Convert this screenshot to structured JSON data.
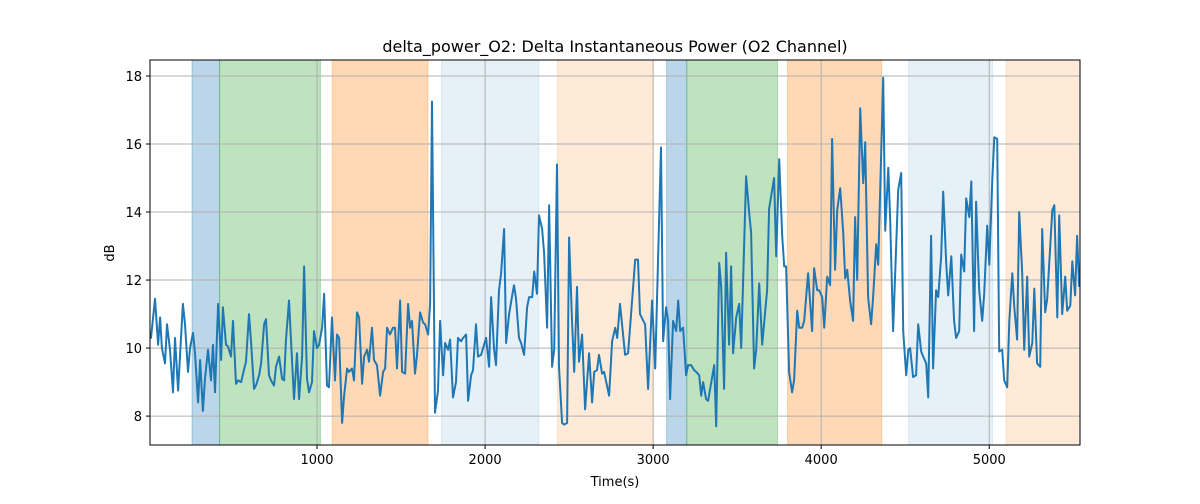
{
  "chart_data": {
    "type": "line",
    "title": "delta_power_O2: Delta Instantaneous Power (O2 Channel)",
    "xlabel": "Time(s)",
    "ylabel": "dB",
    "xlim": [
      6,
      5540
    ],
    "ylim": [
      7.15,
      18.47
    ],
    "xticks": [
      1000,
      2000,
      3000,
      4000,
      5000
    ],
    "xtick_labels": [
      "1000",
      "2000",
      "3000",
      "4000",
      "5000"
    ],
    "yticks": [
      8,
      10,
      12,
      14,
      16,
      18
    ],
    "ytick_labels": [
      "8",
      "10",
      "12",
      "14",
      "16",
      "18"
    ],
    "grid": true,
    "line_color": "#1f77b4",
    "spans": [
      {
        "start": 256,
        "end": 420,
        "color": "#1f77b4",
        "alpha": 0.3
      },
      {
        "start": 420,
        "end": 1020,
        "color": "#2ca02c",
        "alpha": 0.3
      },
      {
        "start": 1090,
        "end": 1660,
        "color": "#ff7f0e",
        "alpha": 0.3
      },
      {
        "start": 1740,
        "end": 2320,
        "color": "#1f77b4",
        "alpha": 0.11
      },
      {
        "start": 2430,
        "end": 3000,
        "color": "#ff7f0e",
        "alpha": 0.16
      },
      {
        "start": 3080,
        "end": 3200,
        "color": "#1f77b4",
        "alpha": 0.3
      },
      {
        "start": 3200,
        "end": 3740,
        "color": "#2ca02c",
        "alpha": 0.3
      },
      {
        "start": 3800,
        "end": 4360,
        "color": "#ff7f0e",
        "alpha": 0.3
      },
      {
        "start": 4520,
        "end": 5020,
        "color": "#1f77b4",
        "alpha": 0.11
      },
      {
        "start": 5100,
        "end": 5540,
        "color": "#ff7f0e",
        "alpha": 0.16
      }
    ],
    "series": [
      {
        "name": "delta_power_O2",
        "x": [
          6,
          12,
          36,
          54,
          66,
          77,
          95,
          107,
          125,
          143,
          155,
          173,
          202,
          214,
          232,
          244,
          262,
          274,
          292,
          304,
          321,
          333,
          351,
          369,
          381,
          393,
          411,
          429,
          440,
          458,
          470,
          488,
          500,
          518,
          530,
          548,
          565,
          577,
          595,
          607,
          625,
          637,
          655,
          667,
          685,
          696,
          714,
          726,
          744,
          756,
          774,
          792,
          804,
          815,
          833,
          851,
          863,
          881,
          893,
          911,
          923,
          940,
          952,
          970,
          982,
          1000,
          1012,
          1030,
          1042,
          1059,
          1071,
          1089,
          1107,
          1119,
          1131,
          1149,
          1161,
          1179,
          1190,
          1208,
          1220,
          1238,
          1250,
          1268,
          1280,
          1298,
          1309,
          1327,
          1339,
          1357,
          1375,
          1393,
          1405,
          1417,
          1434,
          1452,
          1464,
          1476,
          1494,
          1506,
          1524,
          1542,
          1554,
          1565,
          1583,
          1595,
          1613,
          1631,
          1643,
          1661,
          1673,
          1684,
          1702,
          1720,
          1732,
          1750,
          1762,
          1780,
          1792,
          1809,
          1827,
          1839,
          1857,
          1869,
          1887,
          1899,
          1917,
          1928,
          1946,
          1958,
          1976,
          2006,
          2024,
          2036,
          2053,
          2065,
          2083,
          2095,
          2113,
          2125,
          2143,
          2161,
          2172,
          2184,
          2202,
          2214,
          2232,
          2250,
          2262,
          2280,
          2292,
          2309,
          2321,
          2339,
          2351,
          2369,
          2381,
          2399,
          2411,
          2428,
          2440,
          2458,
          2470,
          2488,
          2500,
          2518,
          2530,
          2547,
          2559,
          2577,
          2595,
          2619,
          2637,
          2649,
          2666,
          2678,
          2696,
          2708,
          2738,
          2756,
          2774,
          2786,
          2803,
          2833,
          2851,
          2893,
          2910,
          2922,
          2952,
          2970,
          2994,
          3012,
          3047,
          3059,
          3077,
          3089,
          3101,
          3119,
          3137,
          3149,
          3161,
          3178,
          3196,
          3208,
          3226,
          3244,
          3256,
          3274,
          3286,
          3297,
          3315,
          3327,
          3363,
          3375,
          3393,
          3405,
          3422,
          3434,
          3452,
          3464,
          3476,
          3494,
          3512,
          3524,
          3553,
          3571,
          3583,
          3601,
          3613,
          3631,
          3649,
          3678,
          3690,
          3720,
          3732,
          3750,
          3768,
          3780,
          3791,
          3809,
          3827,
          3839,
          3857,
          3869,
          3887,
          3899,
          3922,
          3946,
          3958,
          3976,
          3988,
          4006,
          4018,
          4036,
          4053,
          4065,
          4083,
          4095,
          4113,
          4131,
          4143,
          4155,
          4172,
          4190,
          4202,
          4214,
          4232,
          4250,
          4262,
          4279,
          4297,
          4309,
          4327,
          4339,
          4369,
          4381,
          4399,
          4410,
          4428,
          4458,
          4476,
          4488,
          4506,
          4518,
          4529,
          4547,
          4565,
          4577,
          4595,
          4607,
          4625,
          4637,
          4654,
          4666,
          4684,
          4696,
          4714,
          4726,
          4744,
          4756,
          4774,
          4791,
          4803,
          4821,
          4833,
          4851,
          4863,
          4881,
          4893,
          4910,
          4922,
          4940,
          4958,
          4970,
          4988,
          5000,
          5018,
          5030,
          5047,
          5059,
          5077,
          5089,
          5107,
          5119,
          5137,
          5149,
          5166,
          5178,
          5196,
          5208,
          5226,
          5238,
          5256,
          5268,
          5285,
          5303,
          5315,
          5333,
          5345,
          5375,
          5387,
          5405,
          5416,
          5434,
          5452,
          5464,
          5482,
          5494,
          5511,
          5523,
          5535
        ],
        "y": [
          10.3,
          10.3,
          11.45,
          10.1,
          10.9,
          10.0,
          9.55,
          10.7,
          9.95,
          8.7,
          10.3,
          8.75,
          11.3,
          10.7,
          9.3,
          10.0,
          10.45,
          9.85,
          8.4,
          9.65,
          8.15,
          9.1,
          9.95,
          9.05,
          10.1,
          8.7,
          11.3,
          9.65,
          11.2,
          10.1,
          10.05,
          9.75,
          10.8,
          8.95,
          9.05,
          9.0,
          9.35,
          9.6,
          11.0,
          10.2,
          8.8,
          8.9,
          9.2,
          9.55,
          10.7,
          10.85,
          9.2,
          9.05,
          8.9,
          9.45,
          9.75,
          9.1,
          9.05,
          10.25,
          11.4,
          9.65,
          8.5,
          9.85,
          8.5,
          9.75,
          12.4,
          9.1,
          8.7,
          9.0,
          10.5,
          10.0,
          10.1,
          10.6,
          11.6,
          8.9,
          8.85,
          10.9,
          9.05,
          10.4,
          10.3,
          7.8,
          8.6,
          9.4,
          9.3,
          9.4,
          9.05,
          11.05,
          10.9,
          8.95,
          9.75,
          9.95,
          9.6,
          10.6,
          9.65,
          9.5,
          8.6,
          9.3,
          9.4,
          10.6,
          10.4,
          10.6,
          10.6,
          9.4,
          11.4,
          9.3,
          9.25,
          11.3,
          10.6,
          10.8,
          9.25,
          9.8,
          11.05,
          10.75,
          10.7,
          10.4,
          11.3,
          17.25,
          8.1,
          8.75,
          10.8,
          9.2,
          10.15,
          9.95,
          10.25,
          8.55,
          9.0,
          10.3,
          10.2,
          10.3,
          10.4,
          8.45,
          9.2,
          9.35,
          10.7,
          9.75,
          9.8,
          10.3,
          9.45,
          11.5,
          10.0,
          9.5,
          11.7,
          12.2,
          13.5,
          10.15,
          11.0,
          11.55,
          11.85,
          11.45,
          10.3,
          10.15,
          9.8,
          11.2,
          11.5,
          11.5,
          12.25,
          11.6,
          13.9,
          13.5,
          12.8,
          10.6,
          14.2,
          9.45,
          9.95,
          15.4,
          9.45,
          7.8,
          7.75,
          7.8,
          13.25,
          10.75,
          9.3,
          11.8,
          9.6,
          10.4,
          8.2,
          9.85,
          8.4,
          9.3,
          9.35,
          9.8,
          9.25,
          9.3,
          8.6,
          10.2,
          10.6,
          10.3,
          11.3,
          9.8,
          9.85,
          12.6,
          12.6,
          11.0,
          10.7,
          8.8,
          11.4,
          9.4,
          15.9,
          10.2,
          11.2,
          10.8,
          8.5,
          10.8,
          10.5,
          11.4,
          10.5,
          10.6,
          9.2,
          9.5,
          9.5,
          9.35,
          9.3,
          9.2,
          8.6,
          9.0,
          8.5,
          8.45,
          9.5,
          7.7,
          12.5,
          11.8,
          8.8,
          12.8,
          10.1,
          12.4,
          9.85,
          10.9,
          11.3,
          10.0,
          15.05,
          14.0,
          13.4,
          9.4,
          9.95,
          11.9,
          10.1,
          11.7,
          14.1,
          15.0,
          12.7,
          15.55,
          13.3,
          12.4,
          12.4,
          9.3,
          8.7,
          9.05,
          11.1,
          10.6,
          10.6,
          10.8,
          12.2,
          10.5,
          12.35,
          11.7,
          11.7,
          11.5,
          10.6,
          12.1,
          11.85,
          16.15,
          12.3,
          14.05,
          14.7,
          13.4,
          12.05,
          12.3,
          11.4,
          10.8,
          13.85,
          12.0,
          17.05,
          14.85,
          16.05,
          11.5,
          10.7,
          11.5,
          13.05,
          12.45,
          17.95,
          13.45,
          15.3,
          13.85,
          10.5,
          14.65,
          15.15,
          10.5,
          9.2,
          9.95,
          10.0,
          9.15,
          9.2,
          10.7,
          9.9,
          9.75,
          9.55,
          8.55,
          13.3,
          9.4,
          11.7,
          11.5,
          12.7,
          14.6,
          12.5,
          11.55,
          12.7,
          10.8,
          10.3,
          10.5,
          12.75,
          12.25,
          14.4,
          13.85,
          14.9,
          10.5,
          14.3,
          11.7,
          10.8,
          11.6,
          13.6,
          12.45,
          14.95,
          16.2,
          16.15,
          9.9,
          9.95,
          9.05,
          8.85,
          10.8,
          12.2,
          11.2,
          10.25,
          14.0,
          12.2,
          9.95,
          12.1,
          9.75,
          10.15,
          11.75,
          9.55,
          9.45,
          13.5,
          11.05,
          11.45,
          14.05,
          14.2,
          10.9,
          13.9,
          11.0,
          12.1,
          11.1,
          11.25,
          12.55,
          11.55,
          13.3,
          11.8
        ]
      }
    ]
  }
}
